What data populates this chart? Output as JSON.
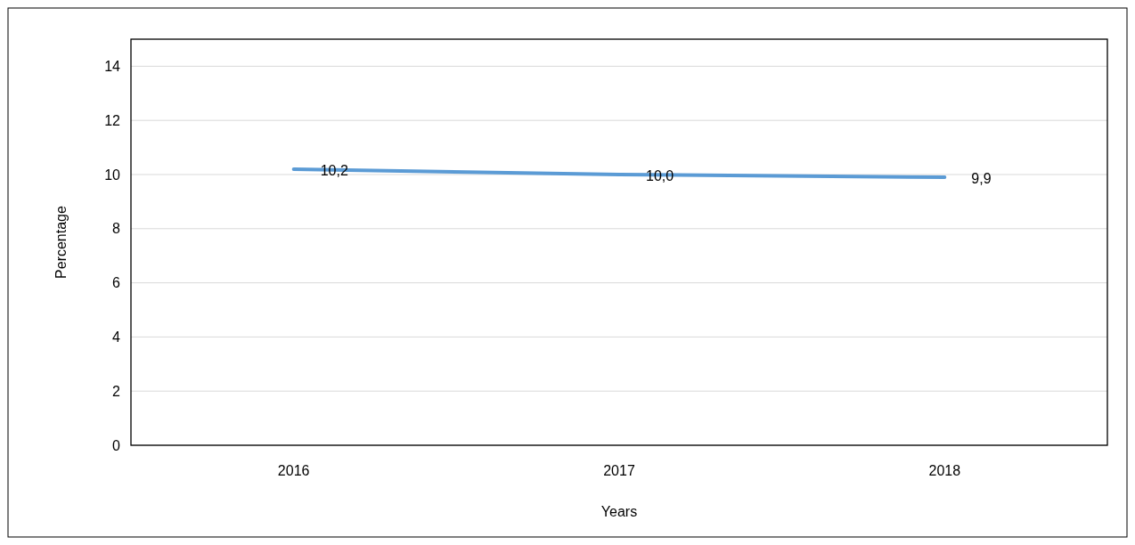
{
  "chart_data": {
    "type": "line",
    "xlabel": "Years",
    "ylabel": "Percentage",
    "categories": [
      "2016",
      "2017",
      "2018"
    ],
    "series": [
      {
        "color": "#5b9bd5",
        "values": [
          10.2,
          10.0,
          9.9
        ],
        "value_labels": [
          "10,2",
          "10,0",
          "9,9"
        ]
      }
    ],
    "ylim": [
      0,
      15
    ],
    "yticks": [
      0,
      2,
      4,
      6,
      8,
      10,
      12,
      14
    ],
    "grid": "y",
    "marker": "none",
    "line_style": "solid"
  }
}
